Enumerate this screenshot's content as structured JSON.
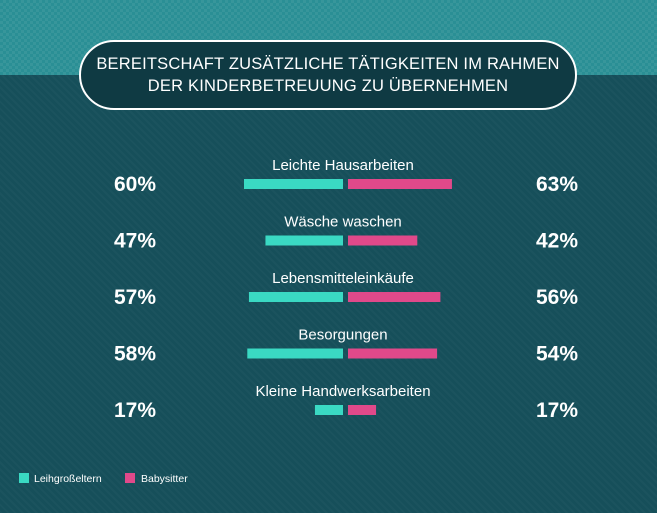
{
  "title": {
    "line1": "BEREITSCHAFT ZUSÄTZLICHE TÄTIGKEITEN IM RAHMEN",
    "line2": "DER KINDERBETREUUNG ZU ÜBERNEHMEN"
  },
  "colors": {
    "series_left": "#3ad9c3",
    "series_right": "#e0498a",
    "background": "#164e59",
    "header_band": "#2a8f95"
  },
  "chart_data": {
    "type": "bar",
    "orientation": "diverging-horizontal",
    "categories": [
      "Leichte Hausarbeiten",
      "Wäsche waschen",
      "Lebensmitteleinkäufe",
      "Besorgungen",
      "Kleine Handwerksarbeiten"
    ],
    "series": [
      {
        "name": "Leihgroßeltern",
        "values": [
          60,
          47,
          57,
          58,
          17
        ],
        "labels": [
          "60%",
          "47%",
          "57%",
          "58%",
          "17%"
        ],
        "color": "#3ad9c3"
      },
      {
        "name": "Babysitter",
        "values": [
          63,
          42,
          56,
          54,
          17
        ],
        "labels": [
          "63%",
          "42%",
          "56%",
          "54%",
          "17%"
        ],
        "color": "#e0498a"
      }
    ],
    "unit": "%",
    "xlim": [
      0,
      100
    ],
    "legend": "bottom-left",
    "grid": false
  }
}
